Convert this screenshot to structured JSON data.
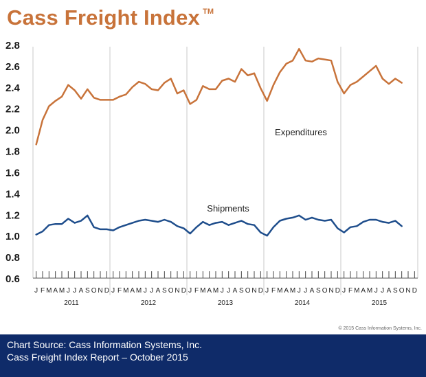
{
  "header": {
    "title": "Cass Freight Index",
    "trademark": "TM"
  },
  "chart_data": {
    "type": "line",
    "title": "Cass Freight Index",
    "ylim": [
      0.6,
      2.9
    ],
    "y_ticks": [
      "0.6",
      "0.8",
      "1.0",
      "1.2",
      "1.4",
      "1.6",
      "1.8",
      "2.0",
      "2.2",
      "2.4",
      "2.6",
      "2.8"
    ],
    "grid": "vertical year separators",
    "month_labels": [
      "J",
      "F",
      "M",
      "A",
      "M",
      "J",
      "J",
      "A",
      "S",
      "O",
      "N",
      "D"
    ],
    "years": [
      "2011",
      "2012",
      "2013",
      "2014",
      "2015"
    ],
    "series": [
      {
        "name": "Expenditures",
        "color": "#c8733a",
        "values": [
          1.86,
          2.09,
          2.22,
          2.27,
          2.31,
          2.42,
          2.37,
          2.29,
          2.38,
          2.3,
          2.28,
          2.28,
          2.28,
          2.31,
          2.33,
          2.4,
          2.45,
          2.43,
          2.38,
          2.37,
          2.44,
          2.48,
          2.34,
          2.37,
          2.24,
          2.28,
          2.41,
          2.38,
          2.38,
          2.46,
          2.48,
          2.45,
          2.57,
          2.51,
          2.53,
          2.39,
          2.27,
          2.42,
          2.54,
          2.62,
          2.65,
          2.76,
          2.65,
          2.64,
          2.67,
          2.66,
          2.65,
          2.45,
          2.34,
          2.42,
          2.45,
          2.5,
          2.55,
          2.6,
          2.48,
          2.43,
          2.48,
          2.44
        ]
      },
      {
        "name": "Shipments",
        "color": "#1f4e8c",
        "values": [
          1.01,
          1.04,
          1.1,
          1.11,
          1.11,
          1.16,
          1.12,
          1.14,
          1.19,
          1.08,
          1.06,
          1.06,
          1.05,
          1.08,
          1.1,
          1.12,
          1.14,
          1.15,
          1.14,
          1.13,
          1.15,
          1.13,
          1.09,
          1.07,
          1.02,
          1.08,
          1.13,
          1.1,
          1.12,
          1.13,
          1.1,
          1.12,
          1.14,
          1.11,
          1.1,
          1.03,
          1.0,
          1.08,
          1.14,
          1.16,
          1.17,
          1.19,
          1.15,
          1.17,
          1.15,
          1.14,
          1.15,
          1.07,
          1.03,
          1.08,
          1.09,
          1.13,
          1.15,
          1.15,
          1.13,
          1.12,
          1.14,
          1.09
        ]
      }
    ]
  },
  "footer": {
    "copyright": "© 2015 Cass Information Systems, Inc.",
    "source_line1": "Chart Source: Cass Information Systems, Inc.",
    "source_line2": "Cass Freight Index Report – October 2015"
  }
}
